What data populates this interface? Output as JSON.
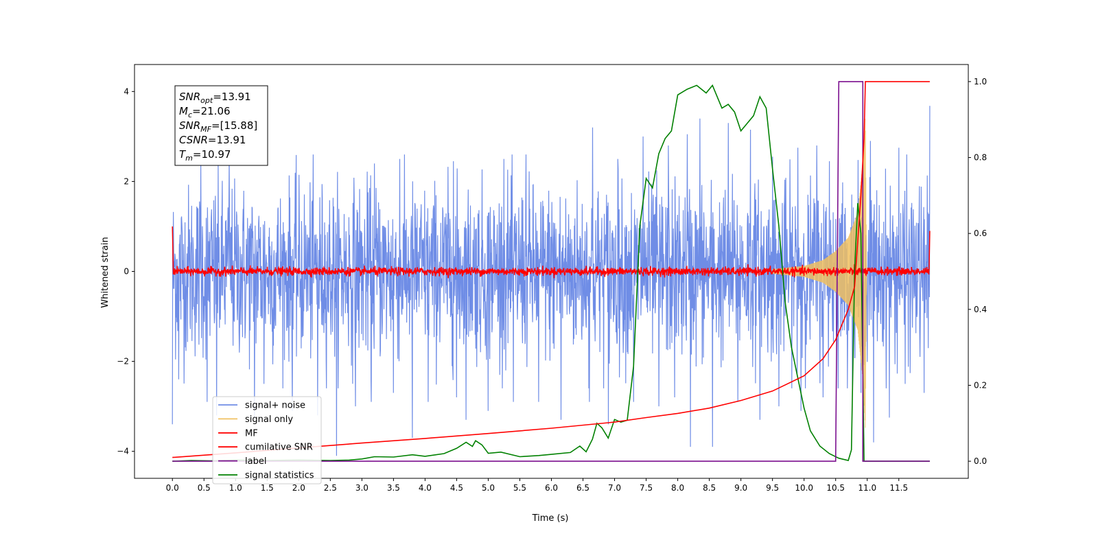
{
  "chart_data": {
    "type": "line",
    "xlabel": "Time (s)",
    "ylabel": "Whitened strain",
    "x_ticks": [
      "0.0",
      "0.5",
      "1.0",
      "1.5",
      "2.0",
      "2.5",
      "3.0",
      "3.5",
      "4.0",
      "4.5",
      "5.0",
      "5.5",
      "6.0",
      "6.5",
      "7.0",
      "7.5",
      "8.0",
      "8.5",
      "9.0",
      "9.5",
      "10.0",
      "10.5",
      "11.0",
      "11.5"
    ],
    "y_ticks_left": [
      "−4",
      "−2",
      "0",
      "2",
      "4"
    ],
    "y_ticks_right": [
      "0.0",
      "0.2",
      "0.4",
      "0.6",
      "0.8",
      "1.0"
    ],
    "xlim": [
      -0.6,
      12.6
    ],
    "ylim_left": [
      -4.6,
      4.6
    ],
    "ylim_right": [
      -0.045,
      1.045
    ],
    "colors": {
      "signal_noise": "#6f8de6",
      "signal_only": "#f0c060",
      "mf": "#ff0000",
      "cumulative_snr": "#ff0000",
      "label": "#7b0f8f",
      "signal_statistics": "#008000"
    },
    "annotation": [
      {
        "main": "SNR",
        "sub": "opt",
        "value": "=13.91"
      },
      {
        "main": "M",
        "sub": "c",
        "value": "=21.06"
      },
      {
        "main": "SNR",
        "sub": "MF",
        "value": "=[15.88]"
      },
      {
        "main": "CSNR",
        "sub": "",
        "value": "=13.91"
      },
      {
        "main": "T",
        "sub": "m",
        "value": "=10.97"
      }
    ],
    "legend": [
      "signal+ noise",
      "signal only",
      "MF",
      "cumilative SNR",
      "label",
      "signal statistics"
    ],
    "legend_position": "lower-left",
    "series": [
      {
        "name": "signal+ noise",
        "axis": "left",
        "description_stats": {
          "t_start": 0.0,
          "t_end": 11.99,
          "amplitude_typical": 1.2,
          "max": 3.68,
          "min": -4.1
        },
        "peaks_high": [
          [
            0.0,
            1.6
          ],
          [
            0.1,
            2.1
          ],
          [
            0.45,
            2.4
          ],
          [
            0.9,
            2.55
          ],
          [
            1.3,
            2.45
          ],
          [
            1.9,
            2.85
          ],
          [
            2.3,
            2.5
          ],
          [
            2.9,
            3.25
          ],
          [
            3.2,
            2.4
          ],
          [
            3.6,
            2.5
          ],
          [
            4.05,
            2.6
          ],
          [
            4.45,
            2.45
          ],
          [
            5.0,
            2.75
          ],
          [
            5.25,
            2.5
          ],
          [
            5.6,
            2.6
          ],
          [
            6.15,
            2.65
          ],
          [
            6.65,
            3.2
          ],
          [
            7.05,
            2.5
          ],
          [
            7.45,
            3.0
          ],
          [
            7.85,
            2.8
          ],
          [
            8.15,
            3.05
          ],
          [
            8.35,
            3.4
          ],
          [
            8.8,
            3.3
          ],
          [
            9.15,
            3.15
          ],
          [
            9.5,
            2.55
          ],
          [
            9.9,
            2.75
          ],
          [
            10.2,
            2.8
          ],
          [
            10.4,
            2.45
          ],
          [
            11.05,
            2.9
          ],
          [
            11.5,
            2.75
          ],
          [
            11.9,
            2.2
          ],
          [
            11.99,
            3.68
          ]
        ],
        "peaks_low": [
          [
            0.0,
            -3.4
          ],
          [
            0.1,
            -2.4
          ],
          [
            0.55,
            -2.9
          ],
          [
            0.7,
            -3.2
          ],
          [
            1.3,
            -3.3
          ],
          [
            1.45,
            -2.5
          ],
          [
            1.9,
            -3.1
          ],
          [
            2.3,
            -3.2
          ],
          [
            2.6,
            -4.1
          ],
          [
            2.9,
            -3.0
          ],
          [
            3.15,
            -2.9
          ],
          [
            3.5,
            -2.7
          ],
          [
            3.8,
            -3.7
          ],
          [
            4.05,
            -2.9
          ],
          [
            4.5,
            -2.8
          ],
          [
            4.65,
            -3.3
          ],
          [
            5.0,
            -3.1
          ],
          [
            5.4,
            -2.9
          ],
          [
            5.8,
            -2.9
          ],
          [
            6.15,
            -3.3
          ],
          [
            6.6,
            -2.9
          ],
          [
            6.9,
            -3.4
          ],
          [
            7.3,
            -2.9
          ],
          [
            7.7,
            -3.0
          ],
          [
            7.95,
            -2.8
          ],
          [
            8.2,
            -3.9
          ],
          [
            8.55,
            -3.9
          ],
          [
            8.95,
            -2.9
          ],
          [
            9.3,
            -3.3
          ],
          [
            9.6,
            -3.0
          ],
          [
            9.95,
            -3.1
          ],
          [
            10.3,
            -2.8
          ],
          [
            10.9,
            -2.7
          ],
          [
            11.1,
            -3.8
          ],
          [
            11.35,
            -3.25
          ],
          [
            11.6,
            -2.5
          ],
          [
            11.9,
            -2.7
          ]
        ]
      },
      {
        "name": "signal only",
        "axis": "left",
        "envelope": [
          [
            9.5,
            0.05
          ],
          [
            10.0,
            0.12
          ],
          [
            10.3,
            0.25
          ],
          [
            10.5,
            0.45
          ],
          [
            10.7,
            0.75
          ],
          [
            10.85,
            1.3
          ],
          [
            10.93,
            2.4
          ],
          [
            10.97,
            3.5
          ],
          [
            10.99,
            0.0
          ]
        ]
      },
      {
        "name": "MF",
        "axis": "left",
        "values_summary": {
          "start": [
            0.0,
            1.0
          ],
          "baseline_noise": 0.1,
          "end": [
            11.99,
            0.9
          ]
        }
      },
      {
        "name": "cumilative SNR",
        "axis": "right",
        "points": [
          [
            0.0,
            0.01
          ],
          [
            1.0,
            0.022
          ],
          [
            2.0,
            0.035
          ],
          [
            3.0,
            0.048
          ],
          [
            4.0,
            0.06
          ],
          [
            5.0,
            0.073
          ],
          [
            6.0,
            0.087
          ],
          [
            7.0,
            0.103
          ],
          [
            7.5,
            0.115
          ],
          [
            8.0,
            0.126
          ],
          [
            8.5,
            0.14
          ],
          [
            9.0,
            0.16
          ],
          [
            9.5,
            0.185
          ],
          [
            10.0,
            0.225
          ],
          [
            10.3,
            0.27
          ],
          [
            10.5,
            0.32
          ],
          [
            10.7,
            0.4
          ],
          [
            10.8,
            0.46
          ],
          [
            10.9,
            0.7
          ],
          [
            10.95,
            0.85
          ],
          [
            10.97,
            1.0
          ],
          [
            11.99,
            1.0
          ]
        ]
      },
      {
        "name": "label",
        "axis": "right",
        "points": [
          [
            0.0,
            0.0
          ],
          [
            10.5,
            0.0
          ],
          [
            10.55,
            1.0
          ],
          [
            10.93,
            1.0
          ],
          [
            10.93,
            0.0
          ],
          [
            11.99,
            0.0
          ]
        ]
      },
      {
        "name": "signal statistics",
        "axis": "right",
        "points": [
          [
            0.0,
            0.0
          ],
          [
            0.3,
            0.002
          ],
          [
            0.6,
            0.001
          ],
          [
            1.0,
            0.003
          ],
          [
            1.5,
            0.002
          ],
          [
            2.0,
            0.003
          ],
          [
            2.5,
            0.002
          ],
          [
            2.8,
            0.003
          ],
          [
            3.0,
            0.006
          ],
          [
            3.2,
            0.012
          ],
          [
            3.5,
            0.011
          ],
          [
            3.8,
            0.017
          ],
          [
            4.0,
            0.013
          ],
          [
            4.3,
            0.02
          ],
          [
            4.5,
            0.034
          ],
          [
            4.65,
            0.05
          ],
          [
            4.75,
            0.039
          ],
          [
            4.8,
            0.054
          ],
          [
            4.9,
            0.043
          ],
          [
            5.0,
            0.021
          ],
          [
            5.2,
            0.024
          ],
          [
            5.5,
            0.012
          ],
          [
            5.8,
            0.015
          ],
          [
            6.0,
            0.018
          ],
          [
            6.3,
            0.023
          ],
          [
            6.45,
            0.04
          ],
          [
            6.55,
            0.025
          ],
          [
            6.65,
            0.058
          ],
          [
            6.72,
            0.1
          ],
          [
            6.8,
            0.088
          ],
          [
            6.9,
            0.061
          ],
          [
            7.0,
            0.11
          ],
          [
            7.1,
            0.103
          ],
          [
            7.2,
            0.108
          ],
          [
            7.3,
            0.25
          ],
          [
            7.4,
            0.62
          ],
          [
            7.5,
            0.745
          ],
          [
            7.6,
            0.72
          ],
          [
            7.7,
            0.81
          ],
          [
            7.8,
            0.85
          ],
          [
            7.9,
            0.87
          ],
          [
            8.0,
            0.965
          ],
          [
            8.15,
            0.98
          ],
          [
            8.3,
            0.99
          ],
          [
            8.45,
            0.97
          ],
          [
            8.55,
            0.99
          ],
          [
            8.7,
            0.93
          ],
          [
            8.8,
            0.94
          ],
          [
            8.9,
            0.92
          ],
          [
            9.0,
            0.87
          ],
          [
            9.1,
            0.89
          ],
          [
            9.2,
            0.91
          ],
          [
            9.3,
            0.96
          ],
          [
            9.4,
            0.93
          ],
          [
            9.5,
            0.77
          ],
          [
            9.6,
            0.62
          ],
          [
            9.7,
            0.42
          ],
          [
            9.8,
            0.3
          ],
          [
            9.9,
            0.22
          ],
          [
            10.0,
            0.14
          ],
          [
            10.1,
            0.08
          ],
          [
            10.25,
            0.04
          ],
          [
            10.4,
            0.02
          ],
          [
            10.55,
            0.008
          ],
          [
            10.7,
            0.002
          ],
          [
            10.75,
            0.03
          ],
          [
            10.8,
            0.5
          ],
          [
            10.85,
            0.68
          ],
          [
            10.9,
            0.6
          ],
          [
            10.95,
            0.0
          ],
          [
            11.99,
            0.0
          ]
        ]
      }
    ]
  }
}
